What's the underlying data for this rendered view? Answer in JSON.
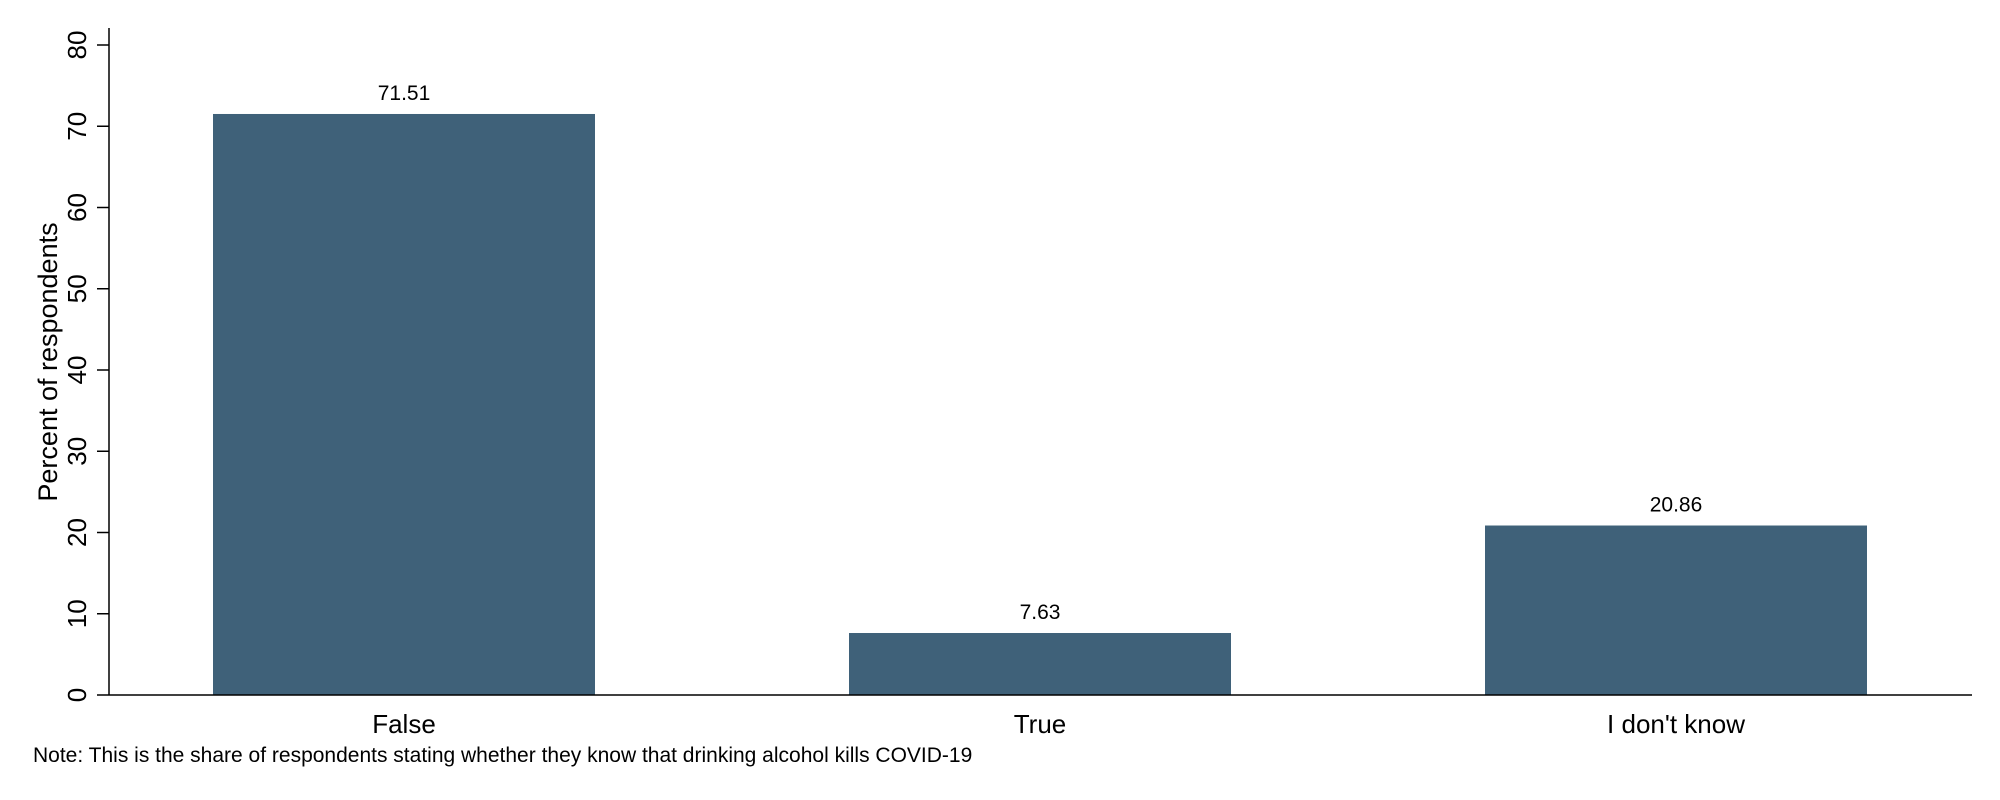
{
  "chart_data": {
    "type": "bar",
    "categories": [
      "False",
      "True",
      "I don't know"
    ],
    "values": [
      71.51,
      7.63,
      20.86
    ],
    "value_labels": [
      "71.51",
      "7.63",
      "20.86"
    ],
    "title": "",
    "xlabel": "",
    "ylabel": "Percent of respondents",
    "ylim": [
      0,
      80
    ],
    "yticks": [
      0,
      10,
      20,
      30,
      40,
      50,
      60,
      70,
      80
    ],
    "grid": false,
    "bar_color": "#3f6179",
    "note": "Note: This is the share of respondents stating whether they know that drinking alcohol kills COVID-19"
  }
}
